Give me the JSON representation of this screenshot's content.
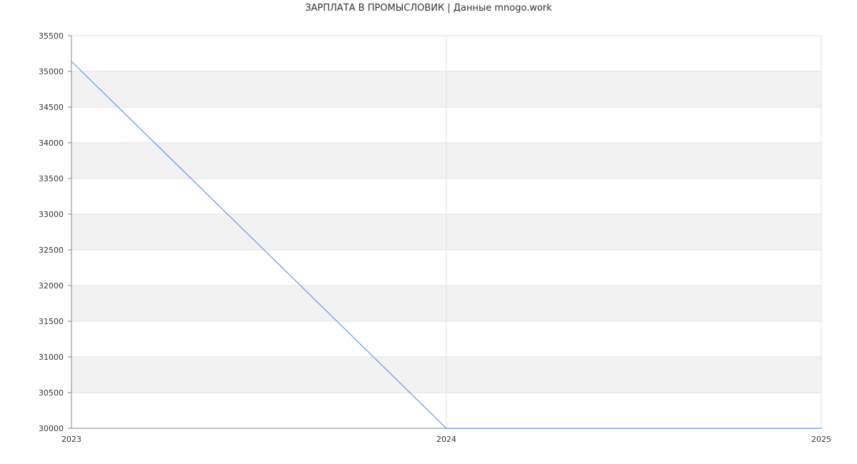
{
  "title": "ЗАРПЛАТА В ПРОМЫСЛОВИК | Данные mnogo.work",
  "chart_data": {
    "type": "line",
    "title": "ЗАРПЛАТА В ПРОМЫСЛОВИК | Данные mnogo.work",
    "x": [
      2023,
      2024,
      2025
    ],
    "series": [
      {
        "values": [
          35140,
          30000,
          30000
        ],
        "color": "#6495ed"
      }
    ],
    "xlim": [
      2023,
      2025
    ],
    "ylim": [
      30000,
      35500
    ],
    "xticks": [
      "2023",
      "2024",
      "2025"
    ],
    "yticks": [
      "30000",
      "30500",
      "31000",
      "31500",
      "32000",
      "32500",
      "33000",
      "33500",
      "34000",
      "34500",
      "35000",
      "35500"
    ],
    "grid": true,
    "band_color": "#f2f2f2"
  }
}
